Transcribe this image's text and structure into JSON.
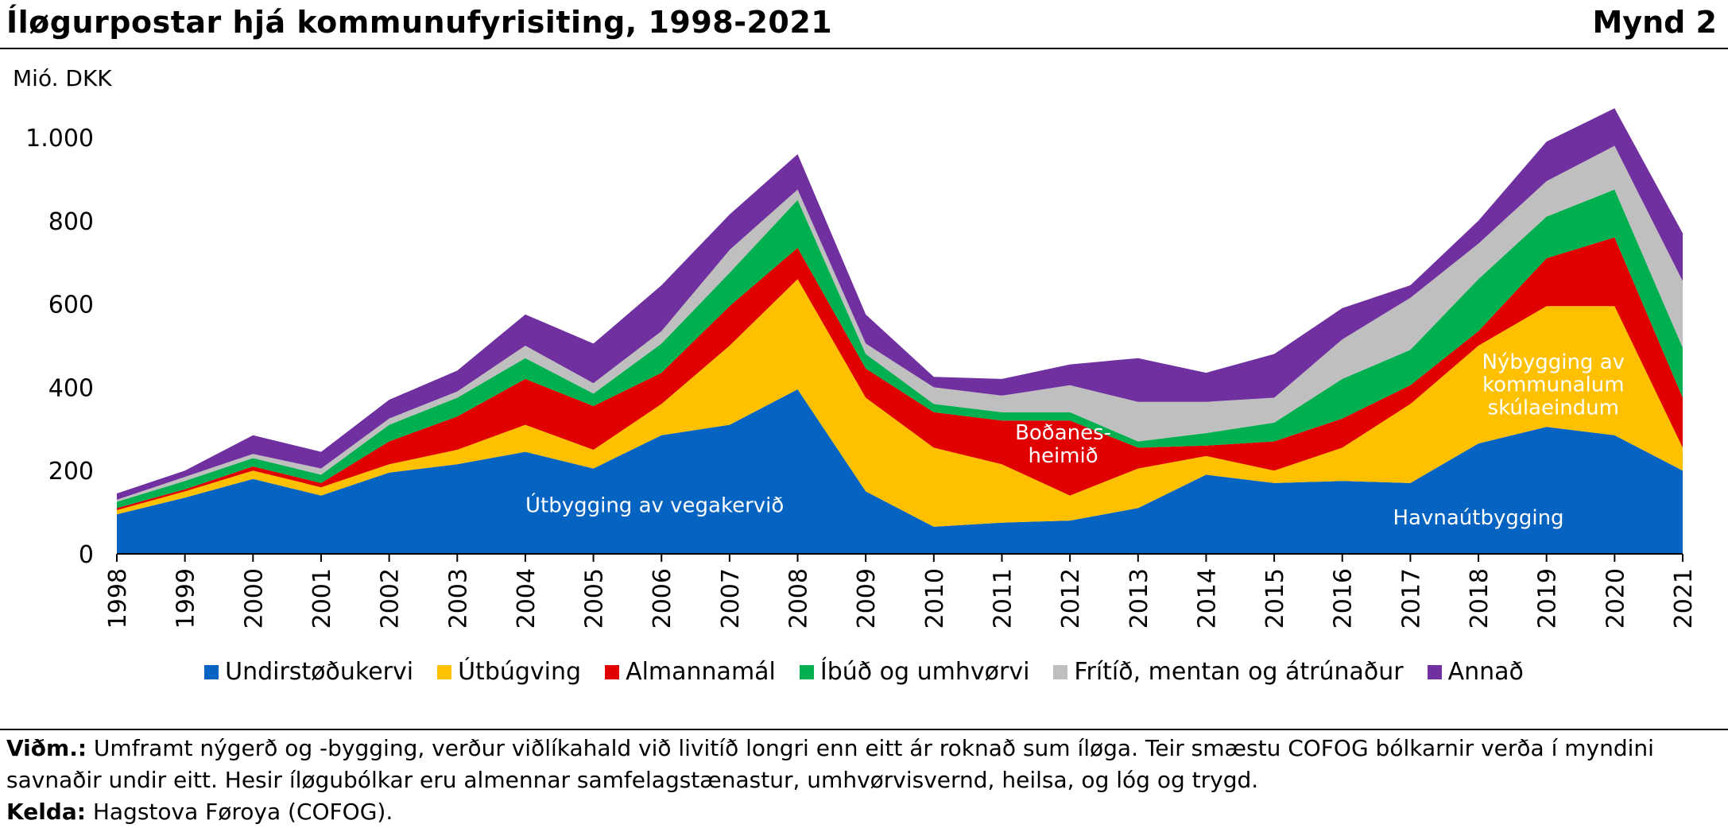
{
  "header": {
    "title": "Íløgurpostar hjá kommunufyrisiting, 1998-2021",
    "figure_label": "Mynd 2",
    "unit_label": "Mió. DKK"
  },
  "chart_data": {
    "type": "area",
    "stacked": true,
    "title": "Íløgurpostar hjá kommunufyrisiting, 1998-2021",
    "ylabel": "Mió. DKK",
    "ylim": [
      0,
      1000
    ],
    "yticks": [
      0,
      200,
      400,
      600,
      800,
      1000
    ],
    "ytick_labels": [
      "0",
      "200",
      "400",
      "600",
      "800",
      "1.000"
    ],
    "grid": false,
    "legend_position": "bottom",
    "categories": [
      "1998",
      "1999",
      "2000",
      "2001",
      "2002",
      "2003",
      "2004",
      "2005",
      "2006",
      "2007",
      "2008",
      "2009",
      "2010",
      "2011",
      "2012",
      "2013",
      "2014",
      "2015",
      "2016",
      "2017",
      "2018",
      "2019",
      "2020",
      "2021"
    ],
    "series": [
      {
        "name": "Undirstøðukervi",
        "color": "#0563C1",
        "values": [
          95,
          135,
          180,
          140,
          195,
          215,
          245,
          205,
          285,
          310,
          395,
          150,
          65,
          75,
          80,
          110,
          190,
          170,
          175,
          170,
          265,
          305,
          285,
          200
        ]
      },
      {
        "name": "Útbúgving",
        "color": "#FFC000",
        "values": [
          10,
          15,
          20,
          20,
          20,
          35,
          65,
          45,
          75,
          190,
          265,
          225,
          190,
          140,
          60,
          95,
          45,
          30,
          80,
          190,
          235,
          290,
          310,
          55
        ]
      },
      {
        "name": "Almannamál",
        "color": "#E00000",
        "values": [
          5,
          5,
          10,
          10,
          55,
          80,
          110,
          105,
          75,
          95,
          75,
          70,
          85,
          105,
          180,
          50,
          25,
          70,
          70,
          45,
          35,
          115,
          165,
          120
        ]
      },
      {
        "name": "Íbúð og umhvørvi",
        "color": "#00B050",
        "values": [
          15,
          20,
          20,
          20,
          40,
          45,
          50,
          30,
          70,
          80,
          115,
          35,
          20,
          20,
          20,
          15,
          30,
          45,
          95,
          85,
          125,
          100,
          115,
          120
        ]
      },
      {
        "name": "Frítíð, mentan og átrúnaður",
        "color": "#BFBFBF",
        "values": [
          5,
          10,
          10,
          15,
          15,
          15,
          30,
          25,
          30,
          55,
          25,
          25,
          40,
          40,
          65,
          95,
          75,
          60,
          95,
          125,
          85,
          85,
          105,
          160
        ]
      },
      {
        "name": "Annað",
        "color": "#7030A0",
        "values": [
          15,
          15,
          45,
          40,
          45,
          50,
          75,
          95,
          110,
          85,
          85,
          70,
          25,
          40,
          50,
          105,
          70,
          105,
          75,
          30,
          55,
          95,
          90,
          115
        ]
      }
    ],
    "annotations": [
      {
        "text": "Útbygging av vegakervið",
        "year": "2005.9",
        "value": 117
      },
      {
        "text": "Boðanes-",
        "year": "2011.9",
        "value": 292
      },
      {
        "text": "heimið",
        "year": "2011.9",
        "value": 237
      },
      {
        "text": "Havnaútbygging",
        "year": "2018.0",
        "value": 88
      },
      {
        "text": "Nýbygging av",
        "year": "2019.1",
        "value": 462
      },
      {
        "text": "kommunalum",
        "year": "2019.1",
        "value": 407
      },
      {
        "text": "skúlaeindum",
        "year": "2019.1",
        "value": 352
      }
    ]
  },
  "footer": {
    "note_label": "Viðm.:",
    "note_text": " Umframt nýgerð og -bygging, verður viðlíkahald við livitíð longri enn eitt ár roknað sum íløga. Teir smæstu COFOG bólkarnir verða í myndini savnaðir undir eitt. Hesir íløgubólkar eru almennar samfelagstænastur, umhvørvisvernd, heilsa, og lóg og trygd.",
    "source_label": "Kelda:",
    "source_text": " Hagstova Føroya (COFOG)."
  }
}
